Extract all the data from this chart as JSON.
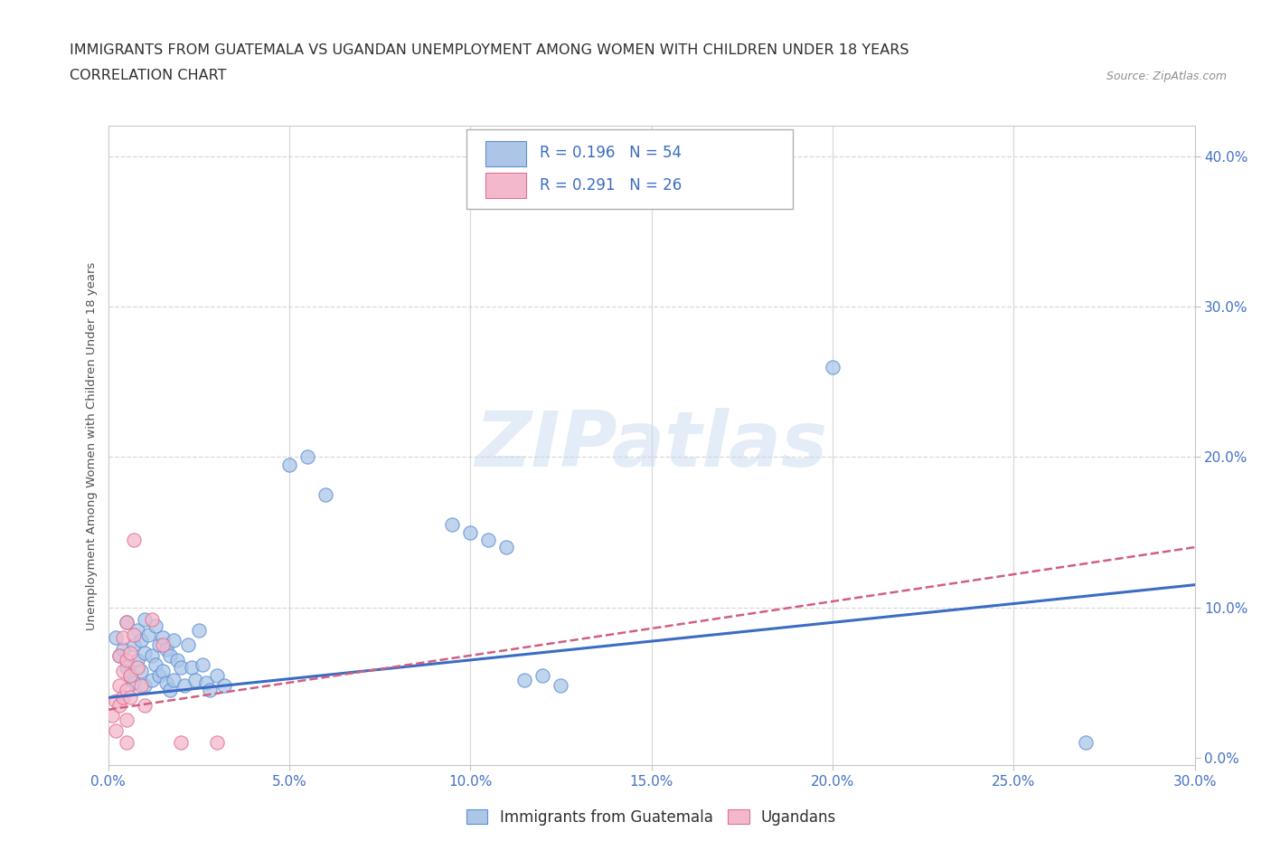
{
  "title_line1": "IMMIGRANTS FROM GUATEMALA VS UGANDAN UNEMPLOYMENT AMONG WOMEN WITH CHILDREN UNDER 18 YEARS",
  "title_line2": "CORRELATION CHART",
  "source": "Source: ZipAtlas.com",
  "xmin": 0.0,
  "xmax": 0.3,
  "ymin": -0.005,
  "ymax": 0.42,
  "blue_R": 0.196,
  "blue_N": 54,
  "pink_R": 0.291,
  "pink_N": 26,
  "legend_labels": [
    "Immigrants from Guatemala",
    "Ugandans"
  ],
  "blue_color": "#adc6e8",
  "pink_color": "#f4b8cc",
  "blue_edge_color": "#5b8fd4",
  "pink_edge_color": "#e07090",
  "blue_line_color": "#3b6cc4",
  "pink_line_color": "#d06080",
  "watermark": "ZIPatlas",
  "grid_color": "#d8d8d8",
  "title_color": "#303030",
  "axis_tick_color": "#4472c4",
  "ylabel_text": "Unemployment Among Women with Children Under 18 years",
  "blue_scatter": [
    [
      0.002,
      0.08
    ],
    [
      0.003,
      0.068
    ],
    [
      0.004,
      0.072
    ],
    [
      0.005,
      0.09
    ],
    [
      0.005,
      0.06
    ],
    [
      0.006,
      0.055
    ],
    [
      0.007,
      0.075
    ],
    [
      0.007,
      0.05
    ],
    [
      0.008,
      0.085
    ],
    [
      0.008,
      0.065
    ],
    [
      0.009,
      0.078
    ],
    [
      0.009,
      0.058
    ],
    [
      0.01,
      0.092
    ],
    [
      0.01,
      0.07
    ],
    [
      0.01,
      0.048
    ],
    [
      0.011,
      0.082
    ],
    [
      0.012,
      0.068
    ],
    [
      0.012,
      0.052
    ],
    [
      0.013,
      0.088
    ],
    [
      0.013,
      0.062
    ],
    [
      0.014,
      0.075
    ],
    [
      0.014,
      0.055
    ],
    [
      0.015,
      0.08
    ],
    [
      0.015,
      0.058
    ],
    [
      0.016,
      0.072
    ],
    [
      0.016,
      0.05
    ],
    [
      0.017,
      0.068
    ],
    [
      0.017,
      0.045
    ],
    [
      0.018,
      0.078
    ],
    [
      0.018,
      0.052
    ],
    [
      0.019,
      0.065
    ],
    [
      0.02,
      0.06
    ],
    [
      0.021,
      0.048
    ],
    [
      0.022,
      0.075
    ],
    [
      0.023,
      0.06
    ],
    [
      0.024,
      0.052
    ],
    [
      0.025,
      0.085
    ],
    [
      0.026,
      0.062
    ],
    [
      0.027,
      0.05
    ],
    [
      0.028,
      0.045
    ],
    [
      0.03,
      0.055
    ],
    [
      0.032,
      0.048
    ],
    [
      0.05,
      0.195
    ],
    [
      0.055,
      0.2
    ],
    [
      0.06,
      0.175
    ],
    [
      0.095,
      0.155
    ],
    [
      0.1,
      0.15
    ],
    [
      0.105,
      0.145
    ],
    [
      0.11,
      0.14
    ],
    [
      0.115,
      0.052
    ],
    [
      0.12,
      0.055
    ],
    [
      0.125,
      0.048
    ],
    [
      0.2,
      0.26
    ],
    [
      0.27,
      0.01
    ]
  ],
  "pink_scatter": [
    [
      0.001,
      0.028
    ],
    [
      0.002,
      0.038
    ],
    [
      0.002,
      0.018
    ],
    [
      0.003,
      0.068
    ],
    [
      0.003,
      0.048
    ],
    [
      0.003,
      0.035
    ],
    [
      0.004,
      0.08
    ],
    [
      0.004,
      0.058
    ],
    [
      0.004,
      0.04
    ],
    [
      0.005,
      0.09
    ],
    [
      0.005,
      0.065
    ],
    [
      0.005,
      0.045
    ],
    [
      0.005,
      0.025
    ],
    [
      0.005,
      0.01
    ],
    [
      0.006,
      0.07
    ],
    [
      0.006,
      0.055
    ],
    [
      0.006,
      0.04
    ],
    [
      0.007,
      0.145
    ],
    [
      0.007,
      0.082
    ],
    [
      0.008,
      0.06
    ],
    [
      0.009,
      0.048
    ],
    [
      0.01,
      0.035
    ],
    [
      0.012,
      0.092
    ],
    [
      0.015,
      0.075
    ],
    [
      0.02,
      0.01
    ],
    [
      0.03,
      0.01
    ]
  ]
}
